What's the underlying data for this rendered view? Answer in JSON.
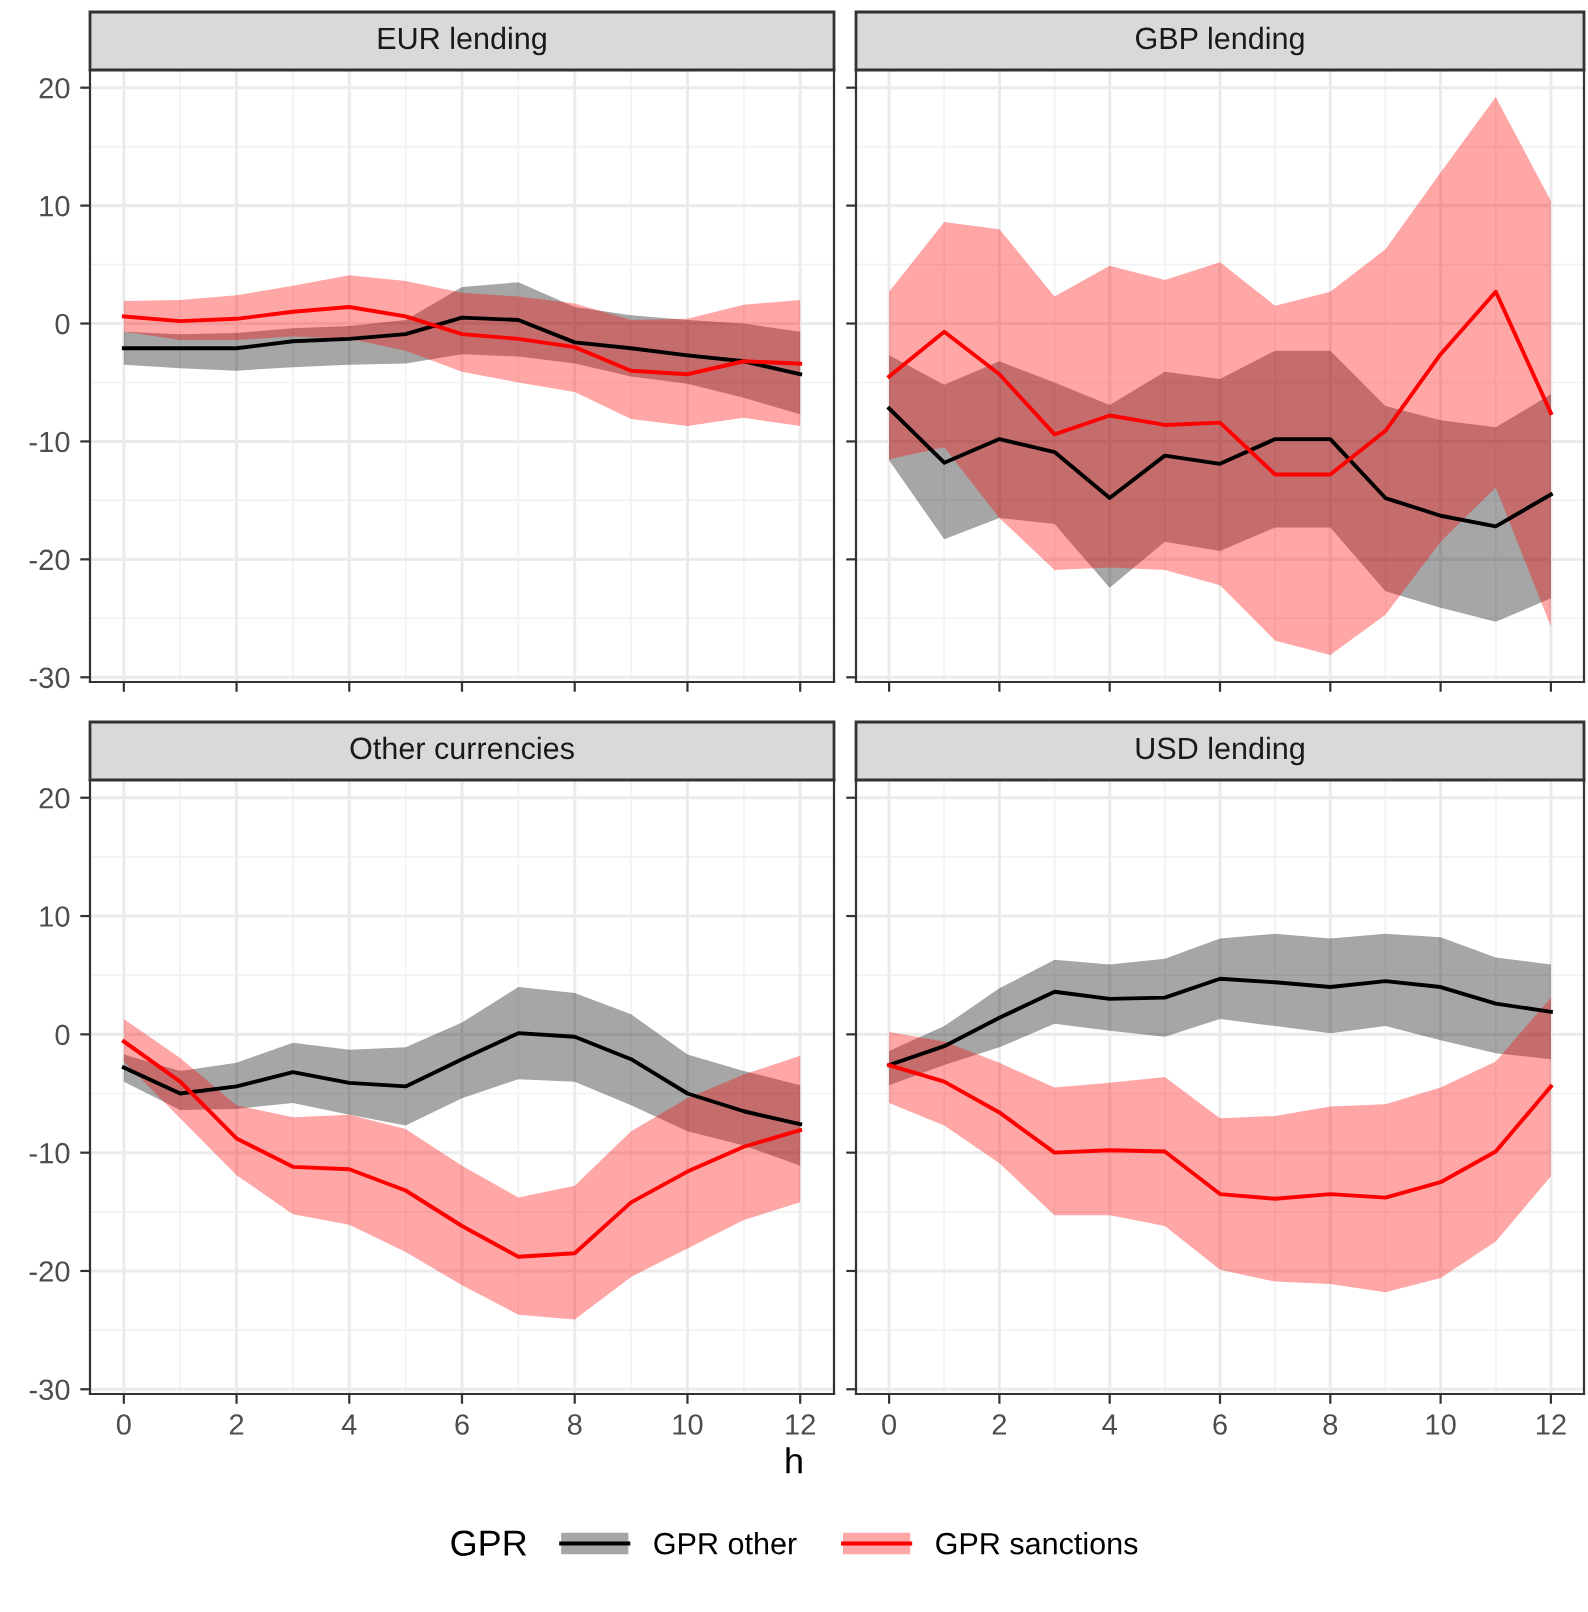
{
  "chart_data": [
    {
      "type": "line",
      "title": "EUR lending",
      "x": [
        0,
        1,
        2,
        3,
        4,
        5,
        6,
        7,
        8,
        9,
        10,
        11,
        12
      ],
      "xlim": [
        -0.6,
        12.6
      ],
      "ylim": [
        -30.4,
        21.5
      ],
      "xticks": [
        0,
        2,
        4,
        6,
        8,
        10,
        12
      ],
      "yticks": [
        -30,
        -20,
        -10,
        0,
        10,
        20
      ],
      "grid": true,
      "tick_labels": "y",
      "legend": "bottom",
      "legend_title": "GPR",
      "series": [
        {
          "name": "GPR other",
          "color": "#000000",
          "values": [
            -2.1,
            -2.1,
            -2.1,
            -1.5,
            -1.3,
            -0.9,
            0.5,
            0.3,
            -1.6,
            -2.1,
            -2.7,
            -3.2,
            -4.3
          ],
          "lower": [
            -3.5,
            -3.8,
            -4.0,
            -3.7,
            -3.5,
            -3.4,
            -2.6,
            -2.8,
            -3.4,
            -4.5,
            -5.1,
            -6.3,
            -7.7
          ],
          "upper": [
            -0.7,
            -0.9,
            -0.8,
            -0.4,
            -0.2,
            0.3,
            3.1,
            3.5,
            1.4,
            0.7,
            0.3,
            0.0,
            -0.7
          ]
        },
        {
          "name": "GPR sanctions",
          "color": "#ff0000",
          "values": [
            0.6,
            0.2,
            0.4,
            1.0,
            1.4,
            0.6,
            -0.9,
            -1.3,
            -2.0,
            -4.0,
            -4.3,
            -3.2,
            -3.4
          ],
          "lower": [
            -0.7,
            -1.4,
            -1.4,
            -1.1,
            -1.3,
            -2.3,
            -4.1,
            -5.0,
            -5.8,
            -8.1,
            -8.7,
            -8.0,
            -8.7
          ],
          "upper": [
            1.9,
            2.0,
            2.4,
            3.2,
            4.1,
            3.6,
            2.6,
            2.3,
            1.7,
            0.3,
            0.4,
            1.6,
            2.0
          ]
        }
      ]
    },
    {
      "type": "line",
      "title": "GBP lending",
      "x": [
        0,
        1,
        2,
        3,
        4,
        5,
        6,
        7,
        8,
        9,
        10,
        11,
        12
      ],
      "xlim": [
        -0.6,
        12.6
      ],
      "ylim": [
        -30.4,
        21.5
      ],
      "xticks": [
        0,
        2,
        4,
        6,
        8,
        10,
        12
      ],
      "yticks": [
        -30,
        -20,
        -10,
        0,
        10,
        20
      ],
      "grid": true,
      "tick_labels": false,
      "series": [
        {
          "color": "#000000",
          "values": [
            -7.2,
            -11.8,
            -9.8,
            -10.9,
            -14.8,
            -11.2,
            -11.9,
            -9.8,
            -9.8,
            -14.8,
            -16.3,
            -17.2,
            -14.5
          ],
          "lower": [
            -11.6,
            -18.3,
            -16.5,
            -17.0,
            -22.4,
            -18.5,
            -19.3,
            -17.3,
            -17.3,
            -22.7,
            -24.1,
            -25.3,
            -23.3
          ],
          "upper": [
            -2.7,
            -5.2,
            -3.2,
            -5.0,
            -6.9,
            -4.1,
            -4.7,
            -2.3,
            -2.3,
            -7.0,
            -8.2,
            -8.8,
            -6.0
          ]
        },
        {
          "color": "#ff0000",
          "values": [
            -4.5,
            -0.7,
            -4.3,
            -9.4,
            -7.8,
            -8.6,
            -8.4,
            -12.8,
            -12.8,
            -9.1,
            -2.6,
            2.7,
            -7.6
          ],
          "lower": [
            -11.5,
            -10.5,
            -16.5,
            -20.9,
            -20.7,
            -20.9,
            -22.2,
            -26.9,
            -28.1,
            -24.7,
            -18.5,
            -13.9,
            -25.7
          ],
          "upper": [
            2.7,
            8.6,
            8.0,
            2.3,
            4.9,
            3.7,
            5.2,
            1.5,
            2.7,
            6.3,
            12.8,
            19.2,
            10.4
          ]
        }
      ]
    },
    {
      "type": "line",
      "title": "Other currencies",
      "xlabel": "h",
      "x": [
        0,
        1,
        2,
        3,
        4,
        5,
        6,
        7,
        8,
        9,
        10,
        11,
        12
      ],
      "xlim": [
        -0.6,
        12.6
      ],
      "ylim": [
        -30.4,
        21.5
      ],
      "xticks": [
        0,
        2,
        4,
        6,
        8,
        10,
        12
      ],
      "yticks": [
        -30,
        -20,
        -10,
        0,
        10,
        20
      ],
      "grid": true,
      "series": [
        {
          "color": "#000000",
          "values": [
            -2.8,
            -5.0,
            -4.4,
            -3.2,
            -4.1,
            -4.4,
            -2.1,
            0.1,
            -0.2,
            -2.1,
            -5.0,
            -6.5,
            -7.6
          ],
          "lower": [
            -4.0,
            -6.4,
            -6.3,
            -5.8,
            -6.8,
            -7.7,
            -5.4,
            -3.8,
            -4.0,
            -6.0,
            -8.2,
            -9.4,
            -11.1
          ],
          "upper": [
            -1.7,
            -3.1,
            -2.4,
            -0.7,
            -1.3,
            -1.1,
            1.0,
            4.0,
            3.5,
            1.7,
            -1.7,
            -3.1,
            -4.3
          ]
        },
        {
          "color": "#ff0000",
          "values": [
            -0.6,
            -4.0,
            -8.8,
            -11.2,
            -11.4,
            -13.2,
            -16.2,
            -18.8,
            -18.5,
            -14.2,
            -11.6,
            -9.5,
            -8.1
          ],
          "lower": [
            -2.3,
            -7.1,
            -11.9,
            -15.2,
            -16.1,
            -18.4,
            -21.2,
            -23.7,
            -24.1,
            -20.5,
            -18.1,
            -15.7,
            -14.2
          ],
          "upper": [
            1.3,
            -2.0,
            -6.0,
            -7.0,
            -6.8,
            -8.0,
            -11.1,
            -13.8,
            -12.8,
            -8.2,
            -5.4,
            -3.4,
            -1.8
          ]
        }
      ]
    },
    {
      "type": "line",
      "title": "USD lending",
      "x": [
        0,
        1,
        2,
        3,
        4,
        5,
        6,
        7,
        8,
        9,
        10,
        11,
        12
      ],
      "xlim": [
        -0.6,
        12.6
      ],
      "ylim": [
        -30.4,
        21.5
      ],
      "xticks": [
        0,
        2,
        4,
        6,
        8,
        10,
        12
      ],
      "yticks": [
        -30,
        -20,
        -10,
        0,
        10,
        20
      ],
      "grid": true,
      "tick_labels": "x",
      "series": [
        {
          "color": "#000000",
          "values": [
            -2.6,
            -1.0,
            1.4,
            3.6,
            3.0,
            3.1,
            4.7,
            4.4,
            4.0,
            4.5,
            4.0,
            2.6,
            1.9
          ],
          "lower": [
            -4.3,
            -2.6,
            -1.1,
            0.9,
            0.3,
            -0.2,
            1.3,
            0.7,
            0.1,
            0.7,
            -0.5,
            -1.6,
            -2.1
          ],
          "upper": [
            -1.4,
            0.7,
            3.9,
            6.3,
            5.9,
            6.4,
            8.1,
            8.5,
            8.1,
            8.5,
            8.2,
            6.5,
            5.9
          ]
        },
        {
          "color": "#ff0000",
          "values": [
            -2.6,
            -4.0,
            -6.6,
            -10.0,
            -9.8,
            -9.9,
            -13.5,
            -13.9,
            -13.5,
            -13.8,
            -12.5,
            -9.9,
            -4.4
          ],
          "lower": [
            -5.8,
            -7.7,
            -10.9,
            -15.3,
            -15.3,
            -16.2,
            -19.9,
            -20.9,
            -21.1,
            -21.8,
            -20.6,
            -17.5,
            -12.0
          ],
          "upper": [
            0.2,
            -0.6,
            -2.4,
            -4.5,
            -4.1,
            -3.6,
            -7.1,
            -6.9,
            -6.1,
            -5.9,
            -4.5,
            -2.3,
            3.1
          ]
        }
      ]
    }
  ]
}
